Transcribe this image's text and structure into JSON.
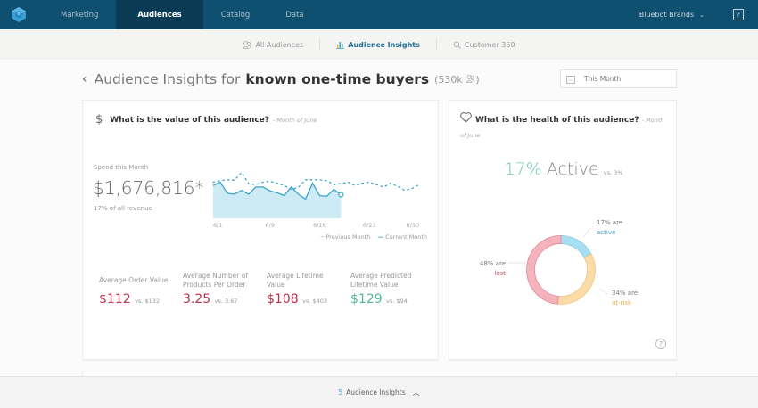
{
  "topnav": {
    "tabs": [
      {
        "label": "Marketing",
        "active": false
      },
      {
        "label": "Audiences",
        "active": true
      },
      {
        "label": "Catalog",
        "active": false
      },
      {
        "label": "Data",
        "active": false
      }
    ],
    "account": "Bluebot Brands",
    "help_label": "?"
  },
  "subnav": {
    "items": [
      {
        "label": "All Audiences",
        "icon": "people-icon",
        "active": false
      },
      {
        "label": "Audience Insights",
        "icon": "bar-chart-icon",
        "active": true
      },
      {
        "label": "Customer 360",
        "icon": "search-icon",
        "active": false
      }
    ]
  },
  "header": {
    "back": "‹",
    "prefix": "Audience Insights for",
    "audience": "known one-time buyers",
    "count": "(530k",
    "count_close": ")"
  },
  "date_filter": {
    "value": "This Month"
  },
  "value_card": {
    "title": "What is the value of this audience?",
    "subtitle": "- Month of June",
    "spend_label": "Spend this Month",
    "spend_value": "$1,676,816*",
    "spend_note": "17% of all revenue",
    "metrics": [
      {
        "label": "Average Order Value",
        "value": "$112",
        "compare": "vs. $132",
        "color": "#c0304a"
      },
      {
        "label": "Average Number of Products Per Order",
        "value": "3.25",
        "compare": "vs. 3.67",
        "color": "#c0304a"
      },
      {
        "label": "Average Lifetime Value",
        "value": "$108",
        "compare": "vs. $403",
        "color": "#c0304a"
      },
      {
        "label": "Average Predicted Lifetime Value",
        "value": "$129",
        "compare": "vs. $94",
        "color": "#4fb99a"
      }
    ]
  },
  "health_card": {
    "title": "What is the health of this audience?",
    "subtitle": "- Month of June",
    "active_pct": "17%",
    "active_word": "Active",
    "active_compare": "vs. 3%",
    "help": "?"
  },
  "bottom_bar": {
    "count": "5",
    "label": "Audience Insights"
  },
  "chart_data": [
    {
      "type": "line",
      "title": "Spend this Month",
      "x_ticks": [
        "6/1",
        "6/9",
        "6/16",
        "6/23",
        "6/30"
      ],
      "x": [
        1,
        2,
        3,
        4,
        5,
        6,
        7,
        8,
        9,
        10,
        11,
        12,
        13,
        14,
        15,
        16,
        17,
        18,
        19,
        20,
        21,
        22,
        23,
        24,
        25,
        26,
        27,
        28,
        29,
        30
      ],
      "ylim": [
        0,
        100
      ],
      "series": [
        {
          "name": "Previous Month",
          "style": "dotted",
          "color": "#3aa6c9",
          "values": [
            75,
            78,
            80,
            79,
            95,
            72,
            70,
            75,
            77,
            73,
            68,
            60,
            64,
            80,
            80,
            80,
            78,
            70,
            72,
            75,
            68,
            73,
            75,
            70,
            65,
            73,
            66,
            58,
            62,
            70
          ]
        },
        {
          "name": "Current Month",
          "style": "solid",
          "color": "#3aa6c9",
          "values": [
            68,
            75,
            52,
            50,
            58,
            50,
            65,
            65,
            57,
            53,
            47,
            65,
            50,
            40,
            73,
            47,
            46,
            60,
            49
          ]
        }
      ],
      "legend": [
        "Previous Month",
        "Current Month"
      ],
      "legend_position": "bottom-right"
    },
    {
      "type": "pie",
      "title": "Audience health",
      "categories": [
        "active",
        "at-risk",
        "lost"
      ],
      "values": [
        17,
        34,
        48
      ],
      "colors": [
        "#a8dff0",
        "#fbdca8",
        "#f5b3bd"
      ],
      "labels": [
        {
          "pct": "17% are",
          "name": "active",
          "color": "#3aa6c9"
        },
        {
          "pct": "34% are",
          "name": "at-risk",
          "color": "#e8b14b"
        },
        {
          "pct": "48% are",
          "name": "lost",
          "color": "#d0566a"
        }
      ]
    }
  ]
}
